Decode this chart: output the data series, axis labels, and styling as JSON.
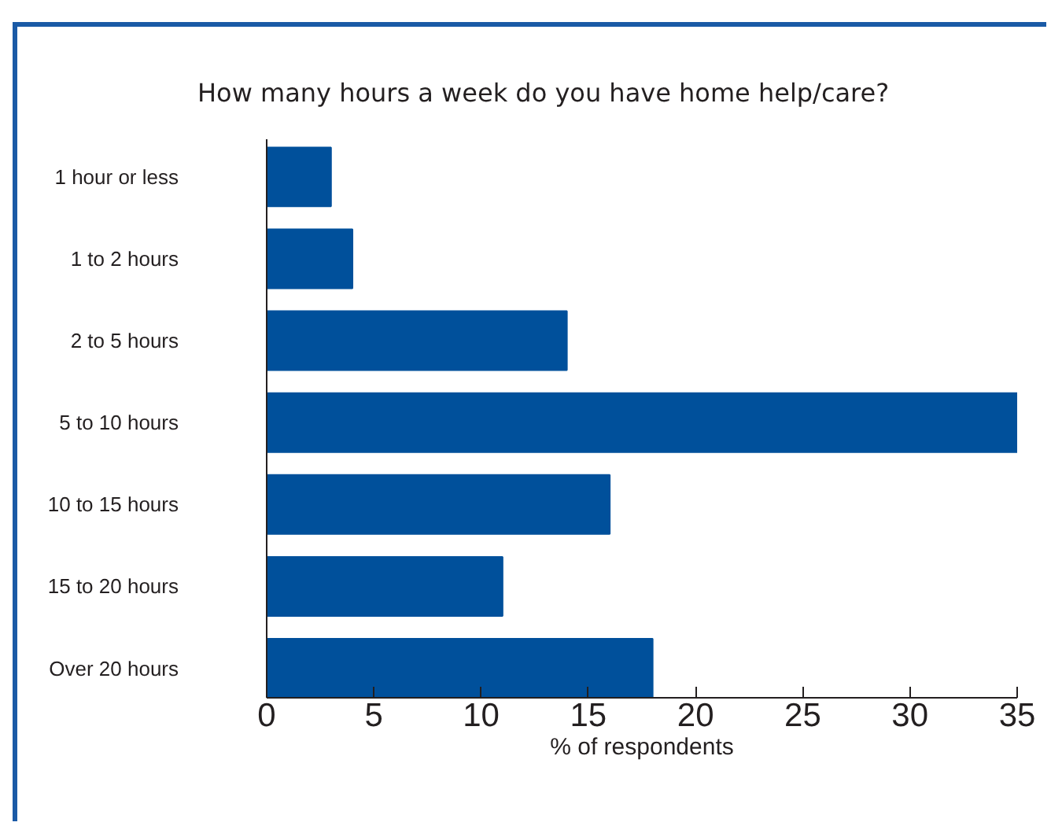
{
  "chart_data": {
    "type": "bar",
    "orientation": "horizontal",
    "title": "How many hours a week do you have home help/care?",
    "xlabel": "% of respondents",
    "categories": [
      "1 hour or less",
      "1 to 2 hours",
      "2 to 5 hours",
      "5 to 10 hours",
      "10 to 15 hours",
      "15 to 20 hours",
      "Over 20 hours"
    ],
    "values": [
      3,
      4,
      14,
      35,
      16,
      11,
      18
    ],
    "color": "#00509b",
    "xlim": [
      0,
      35
    ],
    "xticks": [
      0,
      5,
      10,
      15,
      20,
      25,
      30,
      35
    ],
    "grid": false
  }
}
